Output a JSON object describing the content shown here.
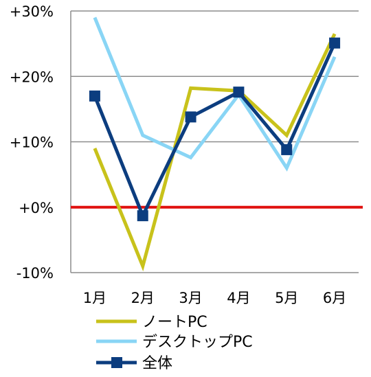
{
  "chart_data": {
    "type": "line",
    "categories": [
      "1月",
      "2月",
      "3月",
      "4月",
      "5月",
      "6月"
    ],
    "y_ticks": [
      "+30%",
      "+20%",
      "+10%",
      "+0%",
      "-10%"
    ],
    "ylim": [
      -10,
      30
    ],
    "grid": true,
    "zero_line_color": "#e0110f",
    "legend_position": "bottom-left",
    "series": [
      {
        "name": "ノートPC",
        "values": [
          9,
          -9,
          18.2,
          17.8,
          11,
          26.5
        ],
        "color": "#c8c21b",
        "marker": "none"
      },
      {
        "name": "デスクトップPC",
        "values": [
          29,
          11,
          7.6,
          17.2,
          6,
          23
        ],
        "color": "#89d5f5",
        "marker": "none"
      },
      {
        "name": "全体",
        "values": [
          17,
          -1.3,
          13.8,
          17.6,
          8.8,
          25.1
        ],
        "color": "#0c3d7f",
        "marker": "square"
      }
    ]
  }
}
